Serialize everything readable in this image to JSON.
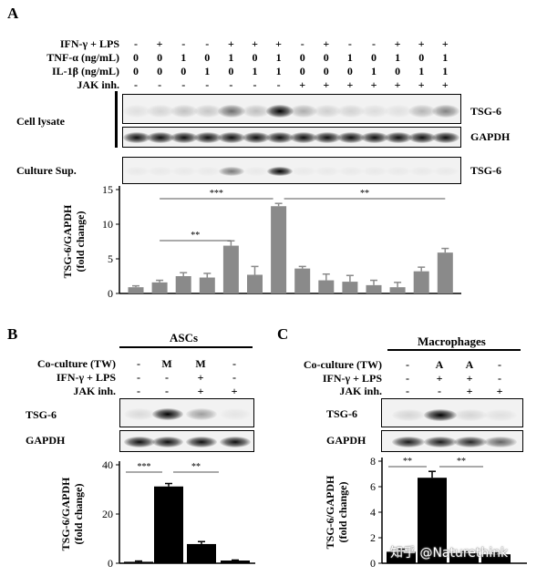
{
  "panels": {
    "A": "A",
    "B": "B",
    "C": "C"
  },
  "panelA": {
    "conditions": [
      {
        "label": "IFN-γ + LPS",
        "values": [
          "-",
          "+",
          "-",
          "-",
          "+",
          "+",
          "+",
          "-",
          "+",
          "-",
          "-",
          "+",
          "+",
          "+"
        ]
      },
      {
        "label": "TNF-α (ng/mL)",
        "values": [
          "0",
          "0",
          "1",
          "0",
          "1",
          "0",
          "1",
          "0",
          "0",
          "1",
          "0",
          "1",
          "0",
          "1"
        ]
      },
      {
        "label": "IL-1β (ng/mL)",
        "values": [
          "0",
          "0",
          "0",
          "1",
          "0",
          "1",
          "1",
          "0",
          "0",
          "0",
          "1",
          "0",
          "1",
          "1"
        ]
      },
      {
        "label": "JAK inh.",
        "values": [
          "-",
          "-",
          "-",
          "-",
          "-",
          "-",
          "-",
          "+",
          "+",
          "+",
          "+",
          "+",
          "+",
          "+"
        ]
      }
    ],
    "blot_labels": {
      "cell_lysate": "Cell lysate",
      "culture_sup": "Culture Sup.",
      "tsg6_top": "TSG-6",
      "gapdh": "GAPDH",
      "tsg6_sup": "TSG-6"
    },
    "ylabel_line1": "TSG-6/GAPDH",
    "ylabel_line2": "(fold change)",
    "sig_left": "**",
    "sig_mid": "***",
    "sig_right": "**"
  },
  "panelB": {
    "title": "ASCs",
    "conditions": [
      {
        "label": "Co-culture (TW)",
        "values": [
          "-",
          "M",
          "M",
          "-"
        ]
      },
      {
        "label": "IFN-γ + LPS",
        "values": [
          "-",
          "-",
          "+",
          "-"
        ]
      },
      {
        "label": "JAK inh.",
        "values": [
          "-",
          "-",
          "+",
          "+"
        ]
      }
    ],
    "blot_labels": {
      "tsg6": "TSG-6",
      "gapdh": "GAPDH"
    },
    "ylabel_line1": "TSG-6/GAPDH",
    "ylabel_line2": "(fold change)",
    "sig_left": "***",
    "sig_right": "**"
  },
  "panelC": {
    "title": "Macrophages",
    "conditions": [
      {
        "label": "Co-culture (TW)",
        "values": [
          "-",
          "A",
          "A",
          "-"
        ]
      },
      {
        "label": "IFN-γ + LPS",
        "values": [
          "-",
          "+",
          "+",
          "-"
        ]
      },
      {
        "label": "JAK inh.",
        "values": [
          "-",
          "-",
          "+",
          "+"
        ]
      }
    ],
    "blot_labels": {
      "tsg6": "TSG-6",
      "gapdh": "GAPDH"
    },
    "ylabel_line1": "TSG-6/GAPDH",
    "ylabel_line2": "(fold change)",
    "sig_left": "**",
    "sig_right": "**"
  },
  "watermark": "知乎 @Naturethink",
  "chart_data": [
    {
      "type": "bar",
      "panel": "A",
      "categories": [
        "1",
        "2",
        "3",
        "4",
        "5",
        "6",
        "7",
        "8",
        "9",
        "10",
        "11",
        "12",
        "13",
        "14"
      ],
      "values": [
        0.9,
        1.6,
        2.5,
        2.3,
        6.9,
        2.7,
        12.6,
        3.6,
        1.9,
        1.7,
        1.2,
        0.9,
        3.2,
        5.9
      ],
      "errors": [
        0.2,
        0.3,
        0.5,
        0.6,
        0.7,
        1.2,
        0.4,
        0.3,
        0.9,
        0.9,
        0.7,
        0.7,
        0.6,
        0.6
      ],
      "yticks": [
        0,
        5,
        10,
        15
      ],
      "ylim": [
        0,
        15
      ]
    },
    {
      "type": "bar",
      "panel": "B",
      "categories": [
        "1",
        "2",
        "3",
        "4"
      ],
      "values": [
        0.6,
        31.2,
        7.8,
        1.1
      ],
      "errors": [
        0.3,
        1.2,
        1.0,
        0.2
      ],
      "yticks": [
        0,
        20,
        40
      ],
      "ylim": [
        0,
        40
      ]
    },
    {
      "type": "bar",
      "panel": "C",
      "categories": [
        "1",
        "2",
        "3",
        "4"
      ],
      "values": [
        0.9,
        6.7,
        0.8,
        0.7
      ],
      "errors": [
        0.2,
        0.5,
        0.1,
        0.1
      ],
      "yticks": [
        0,
        2,
        4,
        6,
        8
      ],
      "ylim": [
        0,
        8
      ]
    }
  ]
}
